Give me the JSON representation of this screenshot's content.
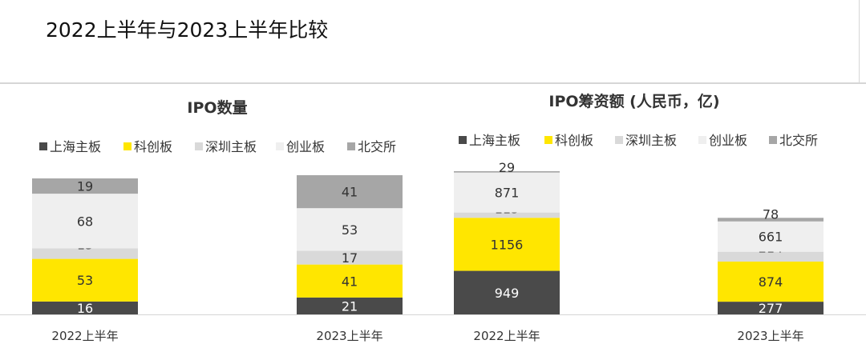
{
  "page": {
    "title": "2022上半年与2023上半年比较"
  },
  "colors": {
    "上海主板": "#4a4a4a",
    "科创板": "#ffe600",
    "深圳主板": "#d9d9d9",
    "创业板": "#efefef",
    "北交所": "#a6a6a6"
  },
  "chart_data": [
    {
      "type": "bar",
      "stacked": true,
      "title": "IPO数量",
      "categories": [
        "2022上半年",
        "2023上半年"
      ],
      "legend_position": "top",
      "series": [
        {
          "name": "上海主板",
          "values": [
            16,
            21
          ]
        },
        {
          "name": "科创板",
          "values": [
            53,
            41
          ]
        },
        {
          "name": "深圳主板",
          "values": [
            13,
            17
          ]
        },
        {
          "name": "创业板",
          "values": [
            68,
            53
          ]
        },
        {
          "name": "北交所",
          "values": [
            19,
            41
          ]
        }
      ]
    },
    {
      "type": "bar",
      "stacked": true,
      "title": "IPO筹资额 (人民币，亿)",
      "categories": [
        "2022上半年",
        "2023上半年"
      ],
      "legend_position": "top",
      "series": [
        {
          "name": "上海主板",
          "values": [
            949,
            277
          ]
        },
        {
          "name": "科创板",
          "values": [
            1156,
            874
          ]
        },
        {
          "name": "深圳主板",
          "values": [
            115,
            214
          ]
        },
        {
          "name": "创业板",
          "values": [
            871,
            661
          ]
        },
        {
          "name": "北交所",
          "values": [
            29,
            78
          ]
        }
      ]
    }
  ]
}
